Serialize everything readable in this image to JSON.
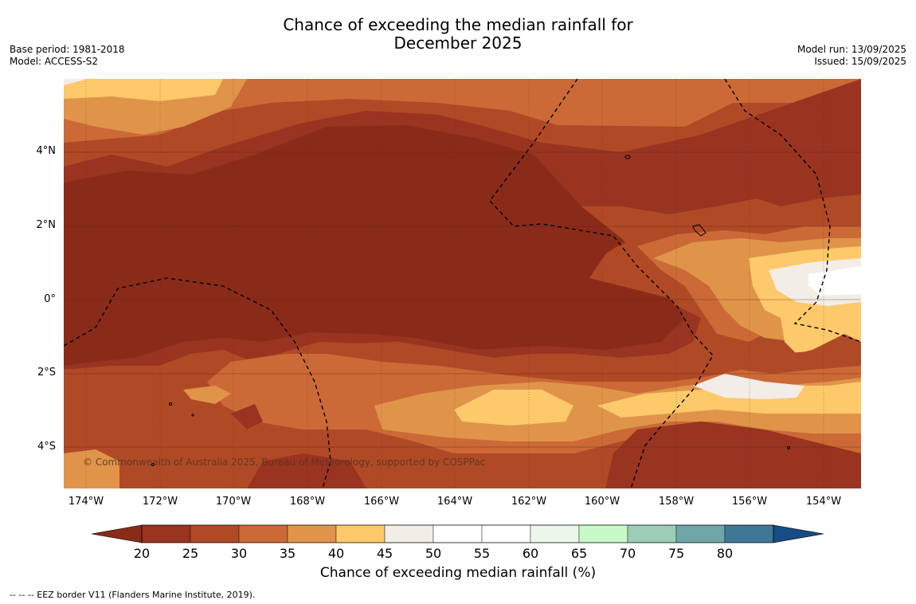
{
  "title": {
    "line1": "Chance of exceeding the median rainfall for",
    "line2": "December 2025"
  },
  "meta_left": {
    "base_period": "Base period: 1981-2018",
    "model": "Model: ACCESS-S2"
  },
  "meta_right": {
    "model_run": "Model run: 13/09/2025",
    "issued": "Issued: 15/09/2025"
  },
  "map": {
    "lat_labels": [
      "4°N",
      "2°N",
      "0°",
      "2°S",
      "4°S"
    ],
    "lon_labels": [
      "174°W",
      "172°W",
      "170°W",
      "168°W",
      "166°W",
      "164°W",
      "162°W",
      "160°W",
      "158°W",
      "156°W",
      "154°W"
    ],
    "copyright": "© Commonwealth of Australia 2025, Bureau of Meteorology, supported by COSPPac",
    "colors": {
      "under_20": "#8a2b1a",
      "c20_25": "#993421",
      "c25_30": "#b04a26",
      "c30_35": "#cb6a36",
      "c35_40": "#e0944a",
      "c40_45": "#fec96a",
      "c45_50": "#f2ede6"
    }
  },
  "colorbar": {
    "ticks": [
      "20",
      "25",
      "30",
      "35",
      "40",
      "45",
      "50",
      "55",
      "60",
      "65",
      "70",
      "75",
      "80"
    ],
    "colors": [
      "#993421",
      "#b04a26",
      "#cb6a36",
      "#e0944a",
      "#fec96a",
      "#f2ede6",
      "#ffffff",
      "#ffffff",
      "#eaf7ea",
      "#c8f9c8",
      "#9dcdb7",
      "#71a6a7",
      "#3f7896"
    ],
    "under_color": "#8a2b1a",
    "over_color": "#174c86",
    "label": "Chance of exceeding median rainfall (%)"
  },
  "footer": {
    "legend_text": "--  --  -- EEZ border V11 (Flanders Marine Institute, 2019)."
  }
}
